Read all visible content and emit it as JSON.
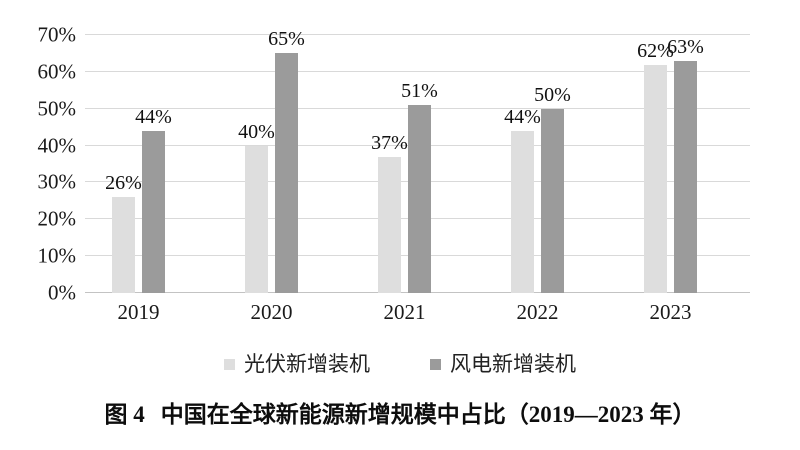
{
  "page": {
    "background": "#ffffff"
  },
  "chart_data": {
    "type": "bar",
    "title": "图 4 中国在全球新能源新增规模中占比（2019—2023 年）",
    "caption": {
      "label": "图 4",
      "text": "中国在全球新能源新增规模中占比（2019—2023 年）"
    },
    "categories": [
      "2019",
      "2020",
      "2021",
      "2022",
      "2023"
    ],
    "series": [
      {
        "name": "光伏新增装机",
        "color": "#dedede",
        "values": [
          26,
          40,
          37,
          44,
          62
        ]
      },
      {
        "name": "风电新增装机",
        "color": "#9b9b9b",
        "values": [
          44,
          65,
          51,
          50,
          63
        ]
      }
    ],
    "value_suffix": "%",
    "ylim": [
      0,
      70
    ],
    "ytick_step": 10,
    "yticks": [
      "0%",
      "10%",
      "20%",
      "30%",
      "40%",
      "50%",
      "60%",
      "70%"
    ],
    "grid": true,
    "legend_position": "bottom",
    "colors": {
      "gridline": "#d9d9d9",
      "baseline": "#c3c3c3",
      "text": "#1a1a1a"
    }
  }
}
